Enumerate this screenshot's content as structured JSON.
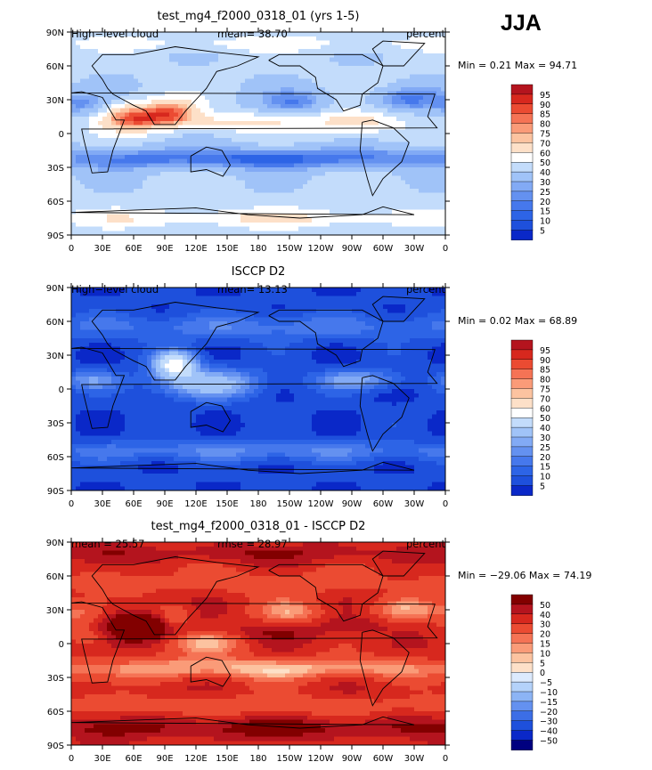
{
  "season": "JJA",
  "x_ticks": [
    "0",
    "30E",
    "60E",
    "90E",
    "120E",
    "150E",
    "180",
    "150W",
    "120W",
    "90W",
    "60W",
    "30W",
    "0"
  ],
  "y_ticks": [
    "90N",
    "60N",
    "30N",
    "0",
    "30S",
    "60S",
    "90S"
  ],
  "colors": {
    "abs": [
      "#000080",
      "#0a28c8",
      "#1e50dc",
      "#2d64e6",
      "#4678ec",
      "#6491f0",
      "#82aaf5",
      "#a0c3f8",
      "#c3dcfb",
      "#ffffff",
      "#fde0c8",
      "#fcc3a0",
      "#fa9b78",
      "#f57355",
      "#eb4b32",
      "#d7281e",
      "#b4141e",
      "#820000"
    ],
    "diff": [
      "#000080",
      "#0a28c8",
      "#1e50dc",
      "#3c6ee6",
      "#6491f0",
      "#8cb4f5",
      "#b4d2fa",
      "#dceafd",
      "#fde0c8",
      "#fcc3a0",
      "#fa9b78",
      "#f57355",
      "#eb4b32",
      "#d7281e",
      "#b4141e",
      "#820000"
    ]
  },
  "panels": [
    {
      "title": "test_mg4_f2000_0318_01 (yrs 1-5)",
      "left_label": "High−level cloud",
      "mid_label": "mean=   38.70",
      "right_label": "percent",
      "minmax": "Min =    0.21 Max =   94.71",
      "scale": "abs",
      "levels": [
        "95",
        "90",
        "85",
        "80",
        "75",
        "70",
        "60",
        "50",
        "40",
        "30",
        "25",
        "20",
        "15",
        "10",
        "5"
      ],
      "mean": 38.7,
      "min": 0.21,
      "max": 94.71
    },
    {
      "title": "ISCCP D2",
      "left_label": "High−level cloud",
      "mid_label": "mean=   13.13",
      "right_label": "percent",
      "minmax": "Min =    0.02 Max =   68.89",
      "scale": "abs",
      "levels": [
        "95",
        "90",
        "85",
        "80",
        "75",
        "70",
        "60",
        "50",
        "40",
        "30",
        "25",
        "20",
        "15",
        "10",
        "5"
      ],
      "mean": 13.13,
      "min": 0.02,
      "max": 68.89
    },
    {
      "title": "test_mg4_f2000_0318_01 - ISCCP D2",
      "left_label": "mean =   25.57",
      "mid_label": "rmse =   28.97",
      "right_label": "percent",
      "minmax": "Min = −29.06 Max =   74.19",
      "scale": "diff",
      "levels": [
        "50",
        "40",
        "30",
        "20",
        "15",
        "10",
        "5",
        "0",
        "−5",
        "−10",
        "−15",
        "−20",
        "−30",
        "−40",
        "−50"
      ],
      "mean": 25.57,
      "rmse": 28.97,
      "min": -29.06,
      "max": 74.19
    }
  ],
  "chart_data": [
    {
      "type": "heatmap",
      "title": "test_mg4_f2000_0318_01 (yrs 1-5)",
      "variable": "High-level cloud",
      "units": "percent",
      "mean": 38.7,
      "min": 0.21,
      "max": 94.71,
      "xlim": [
        0,
        360
      ],
      "ylim": [
        -90,
        90
      ],
      "contour_levels": [
        5,
        10,
        15,
        20,
        25,
        30,
        40,
        50,
        60,
        70,
        75,
        80,
        85,
        90,
        95
      ]
    },
    {
      "type": "heatmap",
      "title": "ISCCP D2",
      "variable": "High-level cloud",
      "units": "percent",
      "mean": 13.13,
      "min": 0.02,
      "max": 68.89,
      "xlim": [
        0,
        360
      ],
      "ylim": [
        -90,
        90
      ],
      "contour_levels": [
        5,
        10,
        15,
        20,
        25,
        30,
        40,
        50,
        60,
        70,
        75,
        80,
        85,
        90,
        95
      ]
    },
    {
      "type": "heatmap",
      "title": "test_mg4_f2000_0318_01 - ISCCP D2",
      "units": "percent",
      "mean": 25.57,
      "rmse": 28.97,
      "min": -29.06,
      "max": 74.19,
      "xlim": [
        0,
        360
      ],
      "ylim": [
        -90,
        90
      ],
      "contour_levels": [
        -50,
        -40,
        -30,
        -20,
        -15,
        -10,
        -5,
        0,
        5,
        10,
        15,
        20,
        30,
        40,
        50
      ]
    }
  ]
}
